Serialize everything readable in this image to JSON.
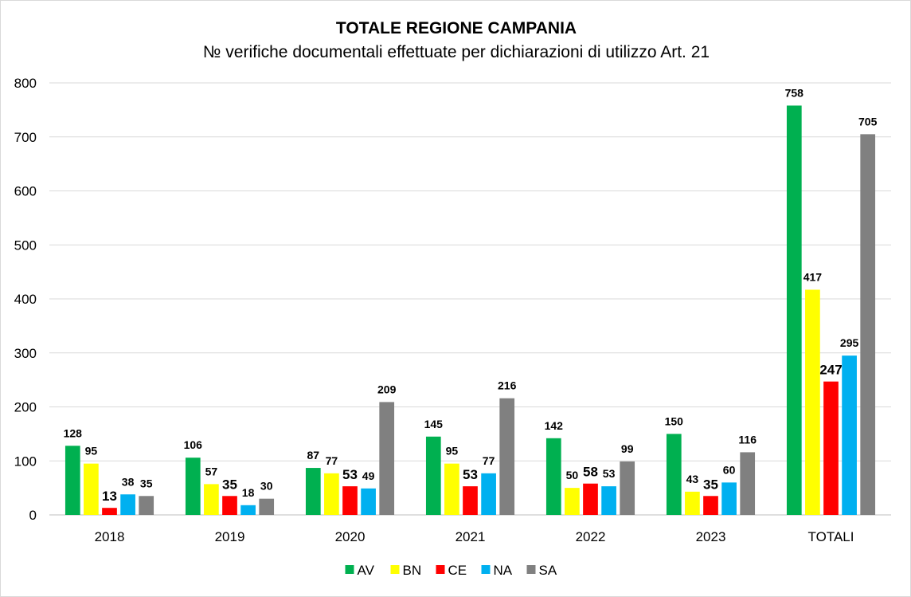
{
  "chart_data": {
    "type": "bar",
    "title": "TOTALE REGIONE CAMPANIA",
    "subtitle": "№  verifiche documentali effettuate per dichiarazioni di utilizzo Art. 21",
    "categories": [
      "2018",
      "2019",
      "2020",
      "2021",
      "2022",
      "2023",
      "TOTALI"
    ],
    "series": [
      {
        "name": "AV",
        "color": "#00b050",
        "values": [
          128,
          106,
          87,
          145,
          142,
          150,
          758
        ]
      },
      {
        "name": "BN",
        "color": "#ffff00",
        "values": [
          95,
          57,
          77,
          95,
          50,
          43,
          417
        ]
      },
      {
        "name": "CE",
        "color": "#ff0000",
        "values": [
          13,
          35,
          53,
          53,
          58,
          35,
          247
        ]
      },
      {
        "name": "NA",
        "color": "#00b0f0",
        "values": [
          38,
          18,
          49,
          77,
          53,
          60,
          295
        ]
      },
      {
        "name": "SA",
        "color": "#808080",
        "values": [
          35,
          30,
          209,
          216,
          99,
          116,
          705
        ]
      }
    ],
    "emphasized_labels": {
      "CE": true
    },
    "yticks": [
      0,
      100,
      200,
      300,
      400,
      500,
      600,
      700,
      800
    ],
    "ylim": [
      0,
      800
    ],
    "grid": true,
    "legend": "bottom"
  }
}
